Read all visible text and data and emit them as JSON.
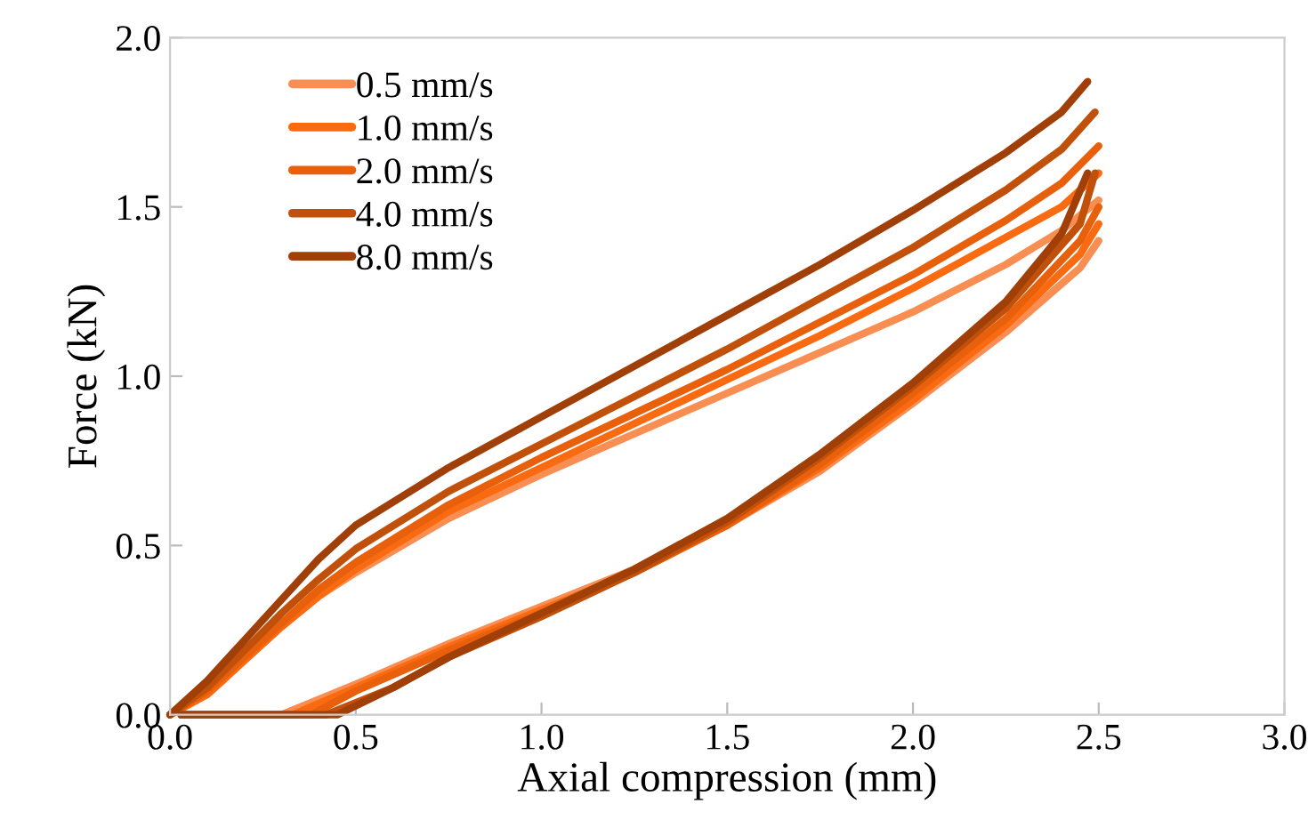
{
  "chart_data": {
    "type": "line",
    "xlabel": "Axial compression (mm)",
    "ylabel": "Force (kN)",
    "xlim": [
      0,
      3
    ],
    "ylim": [
      0,
      2
    ],
    "xticks": [
      {
        "value": 0,
        "label": "0.0"
      },
      {
        "value": 0.5,
        "label": "0.5"
      },
      {
        "value": 1,
        "label": "1.0"
      },
      {
        "value": 1.5,
        "label": "1.5"
      },
      {
        "value": 2,
        "label": "2.0"
      },
      {
        "value": 2.5,
        "label": "2.5"
      },
      {
        "value": 3,
        "label": "3.0"
      }
    ],
    "yticks": [
      {
        "value": 0,
        "label": "0.0"
      },
      {
        "value": 0.5,
        "label": "0.5"
      },
      {
        "value": 1,
        "label": "1.0"
      },
      {
        "value": 1.5,
        "label": "1.5"
      },
      {
        "value": 2,
        "label": "2.0"
      }
    ],
    "grid": false,
    "legend": "top left",
    "marker": "none",
    "line_style": "solid",
    "series": [
      {
        "name": "0.5 mm/s",
        "color": "#f98e52",
        "x": [
          0,
          0.1,
          0.2,
          0.3,
          0.4,
          0.5,
          0.75,
          1.0,
          1.25,
          1.5,
          1.75,
          2.0,
          2.25,
          2.4,
          2.5
        ],
        "values": [
          0,
          0.06,
          0.16,
          0.26,
          0.35,
          0.42,
          0.58,
          0.71,
          0.83,
          0.95,
          1.07,
          1.19,
          1.33,
          1.43,
          1.52
        ]
      },
      {
        "name": "1.0 mm/s",
        "color": "#fa6a10",
        "x": [
          0,
          0.1,
          0.2,
          0.3,
          0.4,
          0.5,
          0.75,
          1.0,
          1.25,
          1.5,
          1.75,
          2.0,
          2.25,
          2.4,
          2.5
        ],
        "values": [
          0,
          0.06,
          0.16,
          0.26,
          0.35,
          0.43,
          0.6,
          0.73,
          0.86,
          0.99,
          1.12,
          1.26,
          1.41,
          1.5,
          1.6
        ]
      },
      {
        "name": "2.0 mm/s",
        "color": "#e8600c",
        "x": [
          0,
          0.1,
          0.2,
          0.3,
          0.4,
          0.5,
          0.75,
          1.0,
          1.25,
          1.5,
          1.75,
          2.0,
          2.25,
          2.4,
          2.5
        ],
        "values": [
          0,
          0.07,
          0.17,
          0.27,
          0.37,
          0.45,
          0.62,
          0.76,
          0.89,
          1.02,
          1.16,
          1.3,
          1.46,
          1.57,
          1.68
        ]
      },
      {
        "name": "4.0 mm/s",
        "color": "#c0500a",
        "x": [
          0,
          0.1,
          0.2,
          0.3,
          0.4,
          0.5,
          0.75,
          1.0,
          1.25,
          1.5,
          1.75,
          2.0,
          2.25,
          2.4,
          2.49
        ],
        "values": [
          0,
          0.08,
          0.19,
          0.3,
          0.4,
          0.49,
          0.66,
          0.8,
          0.94,
          1.08,
          1.23,
          1.38,
          1.55,
          1.67,
          1.78
        ]
      },
      {
        "name": "8.0 mm/s",
        "color": "#a03f08",
        "x": [
          0,
          0.1,
          0.2,
          0.3,
          0.4,
          0.5,
          0.75,
          1.0,
          1.25,
          1.5,
          1.75,
          2.0,
          2.25,
          2.4,
          2.47
        ],
        "values": [
          0,
          0.1,
          0.22,
          0.34,
          0.46,
          0.56,
          0.73,
          0.88,
          1.03,
          1.18,
          1.33,
          1.49,
          1.66,
          1.78,
          1.87
        ]
      },
      {
        "color": "#f98e52",
        "x": [
          0.03,
          0.3,
          0.5,
          0.75,
          1.0,
          1.25,
          1.5,
          1.75,
          2.0,
          2.25,
          2.45,
          2.5
        ],
        "values": [
          0,
          0,
          0.09,
          0.21,
          0.32,
          0.43,
          0.56,
          0.72,
          0.92,
          1.13,
          1.32,
          1.4
        ]
      },
      {
        "color": "#fa6a10",
        "x": [
          0.03,
          0.33,
          0.5,
          0.75,
          1.0,
          1.25,
          1.5,
          1.75,
          2.0,
          2.25,
          2.45,
          2.5
        ],
        "values": [
          0,
          0,
          0.08,
          0.2,
          0.31,
          0.42,
          0.56,
          0.73,
          0.93,
          1.15,
          1.36,
          1.45
        ]
      },
      {
        "color": "#e8600c",
        "x": [
          0.03,
          0.38,
          0.5,
          0.75,
          1.0,
          1.25,
          1.5,
          1.75,
          2.0,
          2.25,
          2.45,
          2.5
        ],
        "values": [
          0,
          0,
          0.07,
          0.19,
          0.3,
          0.42,
          0.56,
          0.74,
          0.95,
          1.17,
          1.4,
          1.5
        ]
      },
      {
        "color": "#c0500a",
        "x": [
          0.03,
          0.42,
          0.6,
          0.75,
          1.0,
          1.25,
          1.5,
          1.75,
          2.0,
          2.25,
          2.45,
          2.49
        ],
        "values": [
          0,
          0,
          0.08,
          0.17,
          0.29,
          0.42,
          0.57,
          0.76,
          0.97,
          1.2,
          1.45,
          1.6
        ]
      },
      {
        "color": "#a03f08",
        "x": [
          0.03,
          0.45,
          0.6,
          0.75,
          1.0,
          1.25,
          1.5,
          1.75,
          2.0,
          2.25,
          2.4,
          2.47
        ],
        "values": [
          0,
          0,
          0.08,
          0.17,
          0.3,
          0.43,
          0.58,
          0.77,
          0.98,
          1.22,
          1.42,
          1.6
        ]
      }
    ]
  }
}
